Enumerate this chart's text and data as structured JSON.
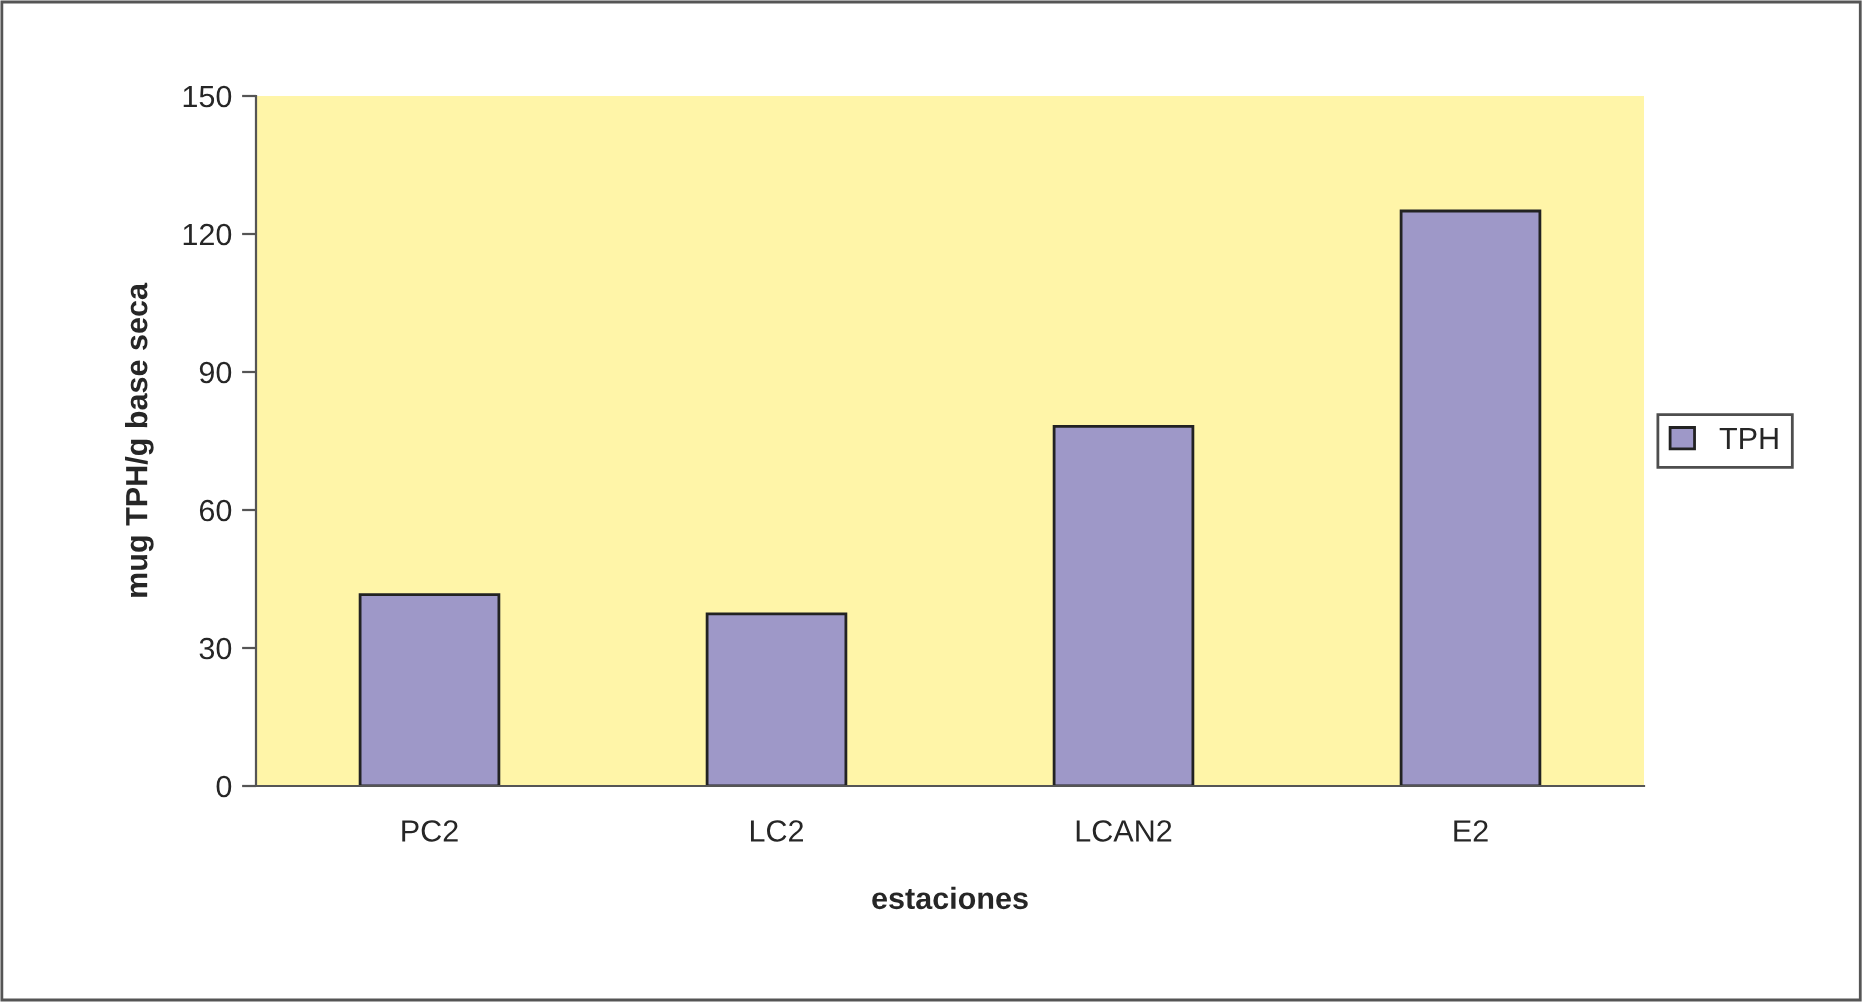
{
  "chart_data": {
    "type": "bar",
    "xlabel": "estaciones",
    "ylabel": "mug TPH/g base seca",
    "categories": [
      "PC2",
      "LC2",
      "LCAN2",
      "E2"
    ],
    "series": [
      {
        "name": "TPH",
        "color": "#9e98c8",
        "values": [
          41.6,
          37.4,
          78.2,
          125
        ]
      }
    ],
    "ylim": [
      0,
      150
    ],
    "yticks": [
      0,
      30,
      60,
      90,
      120,
      150
    ],
    "grid": false,
    "legend": "right"
  }
}
